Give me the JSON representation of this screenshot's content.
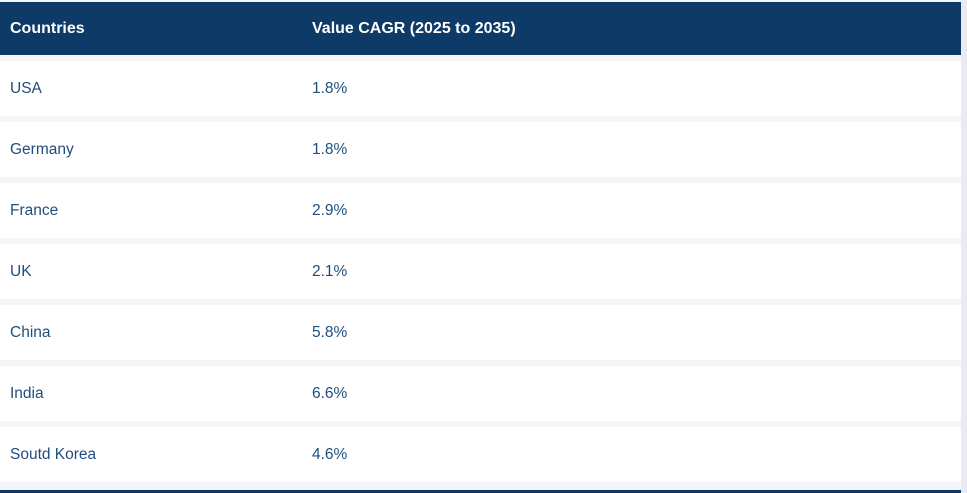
{
  "table": {
    "columns": [
      "Countries",
      "Value CAGR (2025 to 2035)"
    ],
    "rows": [
      {
        "country": "USA",
        "cagr": "1.8%"
      },
      {
        "country": "Germany",
        "cagr": "1.8%"
      },
      {
        "country": "France",
        "cagr": "2.9%"
      },
      {
        "country": "UK",
        "cagr": "2.1%"
      },
      {
        "country": "China",
        "cagr": "5.8%"
      },
      {
        "country": "India",
        "cagr": "6.6%"
      },
      {
        "country": "Soutd Korea",
        "cagr": "4.6%"
      }
    ]
  },
  "chart_data": {
    "type": "table",
    "title": "Value CAGR (2025 to 2035)",
    "columns": [
      "Countries",
      "Value CAGR (2025 to 2035)"
    ],
    "categories": [
      "USA",
      "Germany",
      "France",
      "UK",
      "China",
      "India",
      "Soutd Korea"
    ],
    "values": [
      1.8,
      1.8,
      2.9,
      2.1,
      5.8,
      6.6,
      4.6
    ],
    "units": "%"
  },
  "colors": {
    "header_bg": "#0d3a66",
    "header_text": "#ffffff",
    "row_bg": "#ffffff",
    "row_text": "#1f4e7c",
    "row_separator": "#f4f5f9",
    "page_bg": "#e9eaf2"
  }
}
